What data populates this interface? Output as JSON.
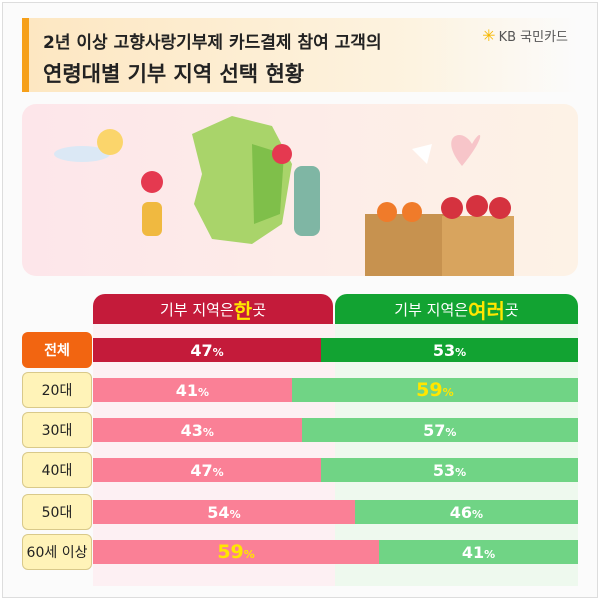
{
  "header": {
    "title_line1": "2년 이상 고향사랑기부제 카드결제 참여 고객의",
    "title_line2": "연령대별 기부 지역 선택 현황",
    "logo": "KB 국민카드"
  },
  "columns": {
    "single": {
      "prefix": "기부 지역은 ",
      "emph": "한",
      "suffix": " 곳"
    },
    "multiple": {
      "prefix": "기부 지역은 ",
      "emph": "여러",
      "suffix": " 곳"
    }
  },
  "colors": {
    "single_dark": "#c41b3a",
    "single_light": "#fa8096",
    "multi_dark": "#12a332",
    "multi_light": "#70d485",
    "total_label": "#f26511",
    "age_label": "#fff3b8",
    "accent": "#f6a01a"
  },
  "chart_data": {
    "type": "bar",
    "stacked": true,
    "orientation": "horizontal",
    "categories": [
      "전체",
      "20대",
      "30대",
      "40대",
      "50대",
      "60세 이상"
    ],
    "series": [
      {
        "name": "기부 지역은 한 곳",
        "values": [
          47,
          41,
          43,
          47,
          54,
          59
        ]
      },
      {
        "name": "기부 지역은 여러 곳",
        "values": [
          53,
          59,
          57,
          53,
          46,
          41
        ]
      }
    ],
    "unit": "%",
    "highlighted": [
      [
        1,
        1
      ],
      [
        5,
        0
      ]
    ]
  }
}
